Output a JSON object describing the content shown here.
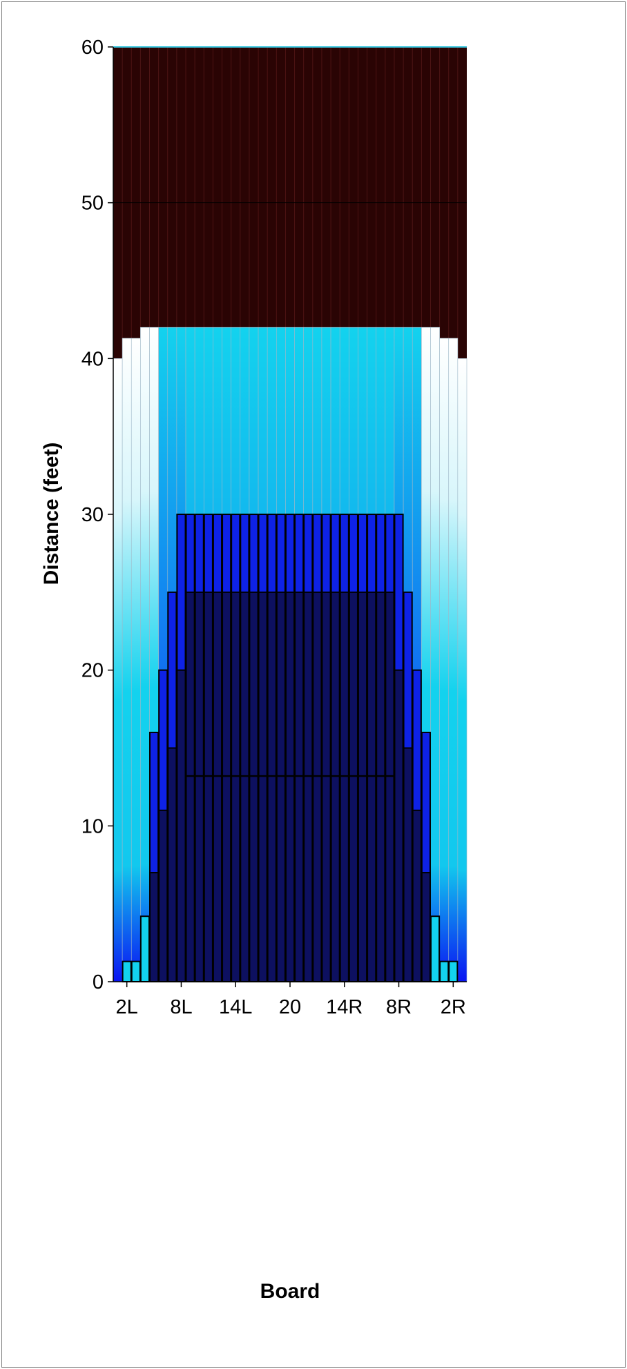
{
  "chart_data": {
    "type": "heatmap",
    "title": "",
    "xlabel": "Board",
    "ylabel": "Distance (feet)",
    "ylim": [
      0,
      60
    ],
    "yticks": [
      0,
      10,
      20,
      30,
      40,
      50,
      60
    ],
    "xticks": [
      {
        "board": 2,
        "label": "2L"
      },
      {
        "board": 8,
        "label": "8L"
      },
      {
        "board": 14,
        "label": "14L"
      },
      {
        "board": 20,
        "label": "20"
      },
      {
        "board": 26,
        "label": "14R"
      },
      {
        "board": 32,
        "label": "8R"
      },
      {
        "board": 38,
        "label": "2R"
      }
    ],
    "boards": 39,
    "lane_length_ft": 60,
    "oil_end_ft": [
      40,
      41.3,
      41.3,
      42,
      42,
      42,
      42,
      42,
      42,
      42,
      42,
      42,
      42,
      42,
      42,
      42,
      42,
      42,
      42,
      42,
      42,
      42,
      42,
      42,
      42,
      42,
      42,
      42,
      42,
      42,
      42,
      42,
      42,
      42,
      42,
      42,
      41.3,
      41.3,
      40
    ],
    "heavy_oil_ft": [
      0,
      1.3,
      1.3,
      4.2,
      7,
      11,
      15,
      20,
      25,
      25,
      25,
      25,
      25,
      25,
      25,
      25,
      25,
      25,
      25,
      25,
      25,
      25,
      25,
      25,
      25,
      25,
      25,
      25,
      25,
      25,
      25,
      20,
      15,
      11,
      7,
      4.2,
      1.3,
      1.3,
      0
    ],
    "medium_oil_ft": [
      0,
      0,
      0,
      0,
      16,
      20,
      25,
      30,
      30,
      30,
      30,
      30,
      30,
      30,
      30,
      30,
      30,
      30,
      30,
      30,
      30,
      30,
      30,
      30,
      30,
      30,
      30,
      30,
      30,
      30,
      30,
      30,
      25,
      20,
      16,
      0,
      0,
      0,
      0
    ],
    "transition_line_ft": 13.2,
    "colors": {
      "dry_lane": "#2a0404",
      "dry_lane_line": "#4d1414",
      "heavy_oil": "#0d1060",
      "medium_oil": "#0e22e6",
      "light_oil": "#13d2ee",
      "deep_blue": "#0a14f2",
      "edge_white": "#ffffff",
      "outline": "#000000"
    }
  }
}
